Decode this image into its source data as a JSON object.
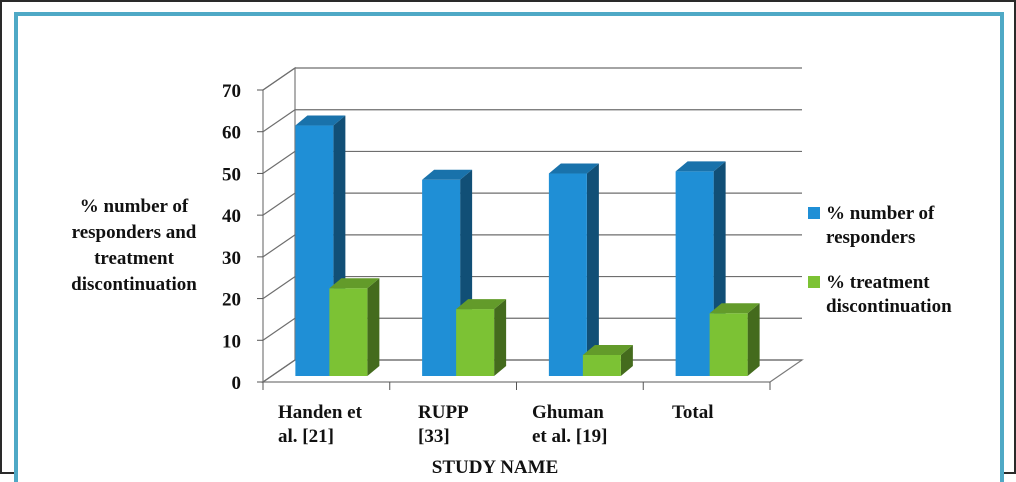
{
  "chart_data": {
    "type": "bar",
    "categories": [
      [
        "Handen et",
        "al. [21]"
      ],
      [
        "RUPP",
        "[33]"
      ],
      [
        "Ghuman",
        "et al. [19]"
      ],
      [
        "Total"
      ]
    ],
    "series": [
      {
        "name": [
          "% number of",
          "responders"
        ],
        "values": [
          61,
          48,
          49.5,
          50
        ],
        "color": "#1f8fd6"
      },
      {
        "name": [
          "% treatment",
          "discontinuation"
        ],
        "values": [
          22,
          17,
          6,
          16
        ],
        "color": "#7cc234"
      }
    ],
    "ylabel": [
      "% number  of",
      "responders and",
      "treatment",
      "discontinuation"
    ],
    "xlabel": "STUDY  NAME",
    "ylim": [
      0,
      70
    ],
    "yticks": [
      0,
      10,
      20,
      30,
      40,
      50,
      60,
      70
    ],
    "grid": true,
    "legend": "right",
    "style": "3d-column"
  }
}
